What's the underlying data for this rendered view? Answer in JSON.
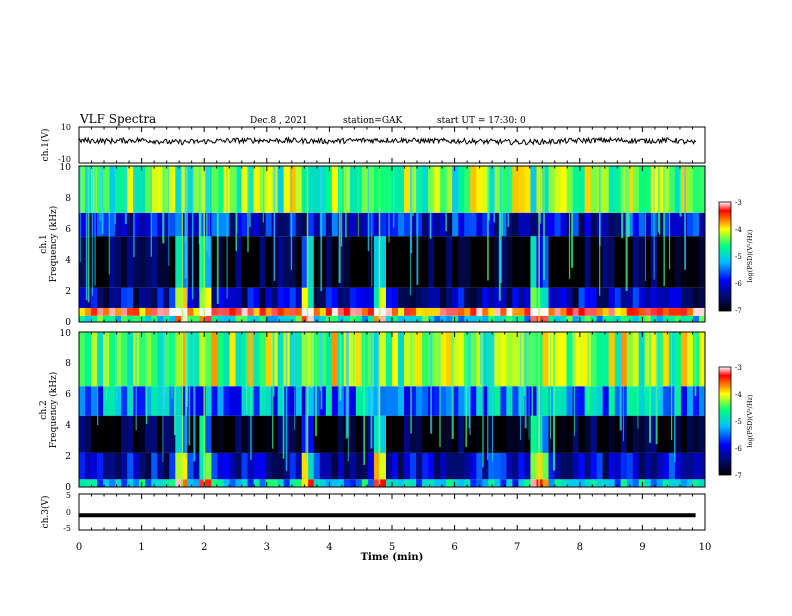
{
  "header": {
    "title": "VLF Spectra",
    "date": "Dec.8 , 2021",
    "station": "station=GAK",
    "start": "start UT = 17:30: 0"
  },
  "colors": {
    "colormap": [
      "#000000",
      "#000b70",
      "#0000ff",
      "#00c0ff",
      "#00ff80",
      "#ffff00",
      "#ff0000",
      "#ffffff"
    ]
  },
  "chart_data": [
    {
      "id": "ch1_waveform",
      "type": "line",
      "ylabel": "ch.1(V)",
      "ylim": [
        -10,
        10
      ],
      "y_ticks": [
        "10",
        "-10"
      ],
      "xlim": [
        0,
        10
      ],
      "description_trace": "black noisy waveform, mean about +2 V, amplitude about ±2 V",
      "x": [
        0,
        0.5,
        1,
        1.5,
        2,
        2.5,
        3,
        3.5,
        4,
        4.5,
        5,
        5.5,
        6,
        6.5,
        7,
        7.5,
        8,
        8.5,
        9,
        9.5,
        9.85
      ],
      "y": [
        2.5,
        2.2,
        2.8,
        1.5,
        2.0,
        2.5,
        2.6,
        2.4,
        2.1,
        2.6,
        2.7,
        2.3,
        2.2,
        1.9,
        1.6,
        1.8,
        2.5,
        2.7,
        2.3,
        2.6,
        1.0
      ]
    },
    {
      "id": "ch1_spectrogram",
      "type": "heatmap",
      "ylabel": "Frequency (kHz)",
      "channel_label": "ch.1",
      "xlim": [
        0,
        10
      ],
      "ylim": [
        0,
        10
      ],
      "y_ticks": [
        "0",
        "2",
        "4",
        "6",
        "8",
        "10"
      ],
      "colorbar": {
        "label": "log(PSD)(V²/Hz)",
        "range": [
          -7,
          -3
        ],
        "ticks": [
          "-3",
          "-4",
          "-5",
          "-6",
          "-7"
        ]
      },
      "bands_khz": [
        {
          "from": 0.0,
          "to": 0.4,
          "level": -5.0
        },
        {
          "from": 0.4,
          "to": 0.9,
          "level": -3.6
        },
        {
          "from": 0.9,
          "to": 2.2,
          "level": -6.2
        },
        {
          "from": 2.2,
          "to": 5.5,
          "level": -6.9
        },
        {
          "from": 5.5,
          "to": 7.0,
          "level": -6.0
        },
        {
          "from": 7.0,
          "to": 10.0,
          "level": -4.6
        }
      ],
      "events_min": [
        1.65,
        2.0,
        3.65,
        4.8,
        7.35
      ]
    },
    {
      "id": "ch2_spectrogram",
      "type": "heatmap",
      "ylabel": "Frequency (kHz)",
      "channel_label": "ch.2",
      "xlim": [
        0,
        10
      ],
      "ylim": [
        0,
        10
      ],
      "y_ticks": [
        "0",
        "2",
        "4",
        "6",
        "8",
        "10"
      ],
      "colorbar": {
        "label": "log(PSD)(V²/Hz)",
        "range": [
          -7,
          -3
        ],
        "ticks": [
          "-3",
          "-4",
          "-5",
          "-6",
          "-7"
        ]
      },
      "bands_khz": [
        {
          "from": 0.0,
          "to": 0.5,
          "level": -5.2
        },
        {
          "from": 0.5,
          "to": 2.2,
          "level": -6.1
        },
        {
          "from": 2.2,
          "to": 4.6,
          "level": -6.9
        },
        {
          "from": 4.6,
          "to": 6.5,
          "level": -5.4
        },
        {
          "from": 6.5,
          "to": 10.0,
          "level": -4.5
        }
      ],
      "events_min": [
        1.65,
        2.0,
        3.65,
        4.8,
        7.35
      ]
    },
    {
      "id": "ch3_waveform",
      "type": "line",
      "ylabel": "ch.3(V)",
      "ylim": [
        -5,
        5
      ],
      "y_ticks": [
        "5",
        "0",
        "-5"
      ],
      "xlim": [
        0,
        10
      ],
      "x": [
        0,
        9.85
      ],
      "y": [
        -0.9,
        -0.9
      ]
    }
  ],
  "xaxis": {
    "label": "Time (min)",
    "ticks": [
      "0",
      "1",
      "2",
      "3",
      "4",
      "5",
      "6",
      "7",
      "8",
      "9",
      "10"
    ]
  }
}
